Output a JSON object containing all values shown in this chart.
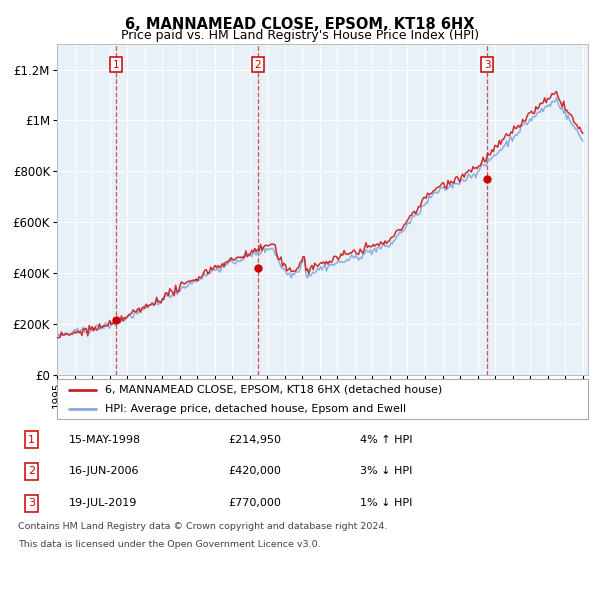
{
  "title": "6, MANNAMEAD CLOSE, EPSOM, KT18 6HX",
  "subtitle": "Price paid vs. HM Land Registry's House Price Index (HPI)",
  "plot_bg_color": "#e8f0f8",
  "hpi_line_color": "#88aadd",
  "price_line_color": "#cc2222",
  "dot_color": "#cc0000",
  "vline_color": "#cc3333",
  "ylim": [
    0,
    1300000
  ],
  "yticks": [
    0,
    200000,
    400000,
    600000,
    800000,
    1000000,
    1200000
  ],
  "ytick_labels": [
    "£0",
    "£200K",
    "£400K",
    "£600K",
    "£800K",
    "£1M",
    "£1.2M"
  ],
  "sale_years": [
    1998.37,
    2006.46,
    2019.54
  ],
  "sale_prices": [
    214950,
    420000,
    770000
  ],
  "sale_labels": [
    "1",
    "2",
    "3"
  ],
  "legend_entries": [
    "6, MANNAMEAD CLOSE, EPSOM, KT18 6HX (detached house)",
    "HPI: Average price, detached house, Epsom and Ewell"
  ],
  "table_rows": [
    [
      "1",
      "15-MAY-1998",
      "£214,950",
      "4% ↑ HPI"
    ],
    [
      "2",
      "16-JUN-2006",
      "£420,000",
      "3% ↓ HPI"
    ],
    [
      "3",
      "19-JUL-2019",
      "£770,000",
      "1% ↓ HPI"
    ]
  ],
  "footnote1": "Contains HM Land Registry data © Crown copyright and database right 2024.",
  "footnote2": "This data is licensed under the Open Government Licence v3.0."
}
